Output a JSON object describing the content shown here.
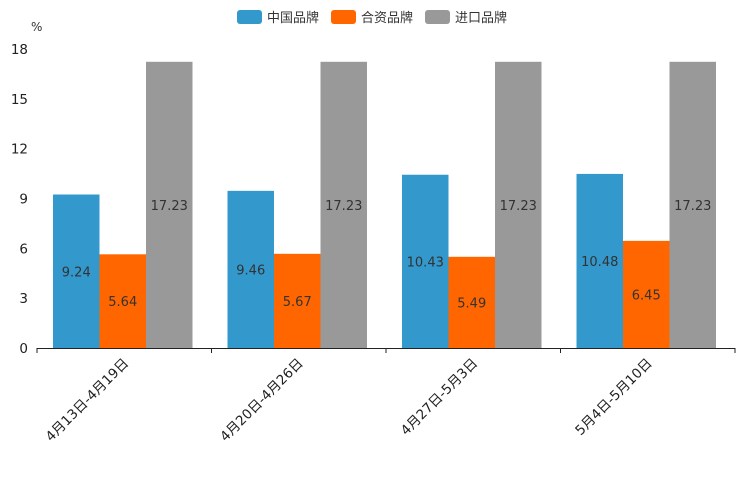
{
  "chart_data": {
    "type": "bar",
    "unit": "%",
    "categories": [
      "4月13日-4月19日",
      "4月20日-4月26日",
      "4月27日-5月3日",
      "5月4日-5月10日"
    ],
    "series": [
      {
        "name": "中国品牌",
        "color": "#3398cc",
        "values": [
          9.24,
          9.46,
          10.43,
          10.48
        ]
      },
      {
        "name": "合资品牌",
        "color": "#ff6600",
        "values": [
          5.64,
          5.67,
          5.49,
          6.45
        ]
      },
      {
        "name": "进口品牌",
        "color": "#999999",
        "values": [
          17.23,
          17.23,
          17.23,
          17.23
        ]
      }
    ],
    "yticks": [
      0,
      3,
      6,
      9,
      12,
      15,
      18
    ],
    "ylim": [
      0,
      18
    ],
    "legend_position": "top-center"
  }
}
